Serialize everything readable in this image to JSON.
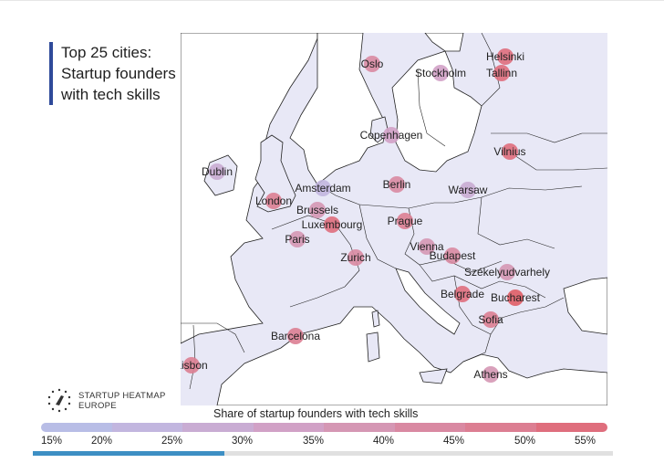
{
  "title": [
    "Top 25 cities:",
    "Startup founders",
    "with tech skills"
  ],
  "brand": {
    "name_line1": "STARTUP HEATMAP",
    "name_line2": "EUROPE",
    "logo_icon": "rocket-stars-icon"
  },
  "legend": {
    "title": "Share of startup founders with tech skills",
    "ticks": [
      "15%",
      "20%",
      "25%",
      "30%",
      "35%",
      "40%",
      "45%",
      "50%",
      "55%"
    ],
    "colors": [
      "#b8bde6",
      "#c2b6df",
      "#c9acd3",
      "#d1a1c6",
      "#d597b4",
      "#d989a2",
      "#dc7e92",
      "#df6e7d",
      "#e05d66"
    ]
  },
  "colors": {
    "map_land": "#e8e8f6",
    "map_water": "#ffffff",
    "border": "#111111",
    "title_accent": "#2f4a9a",
    "progress": "#3d8fc4"
  },
  "progress": {
    "fraction": 0.33
  },
  "cities": [
    {
      "name": "Oslo",
      "share": 38
    },
    {
      "name": "Stockholm",
      "share": 31
    },
    {
      "name": "Helsinki",
      "share": 50
    },
    {
      "name": "Tallinn",
      "share": 52
    },
    {
      "name": "Copenhagen",
      "share": 29
    },
    {
      "name": "Vilnius",
      "share": 52
    },
    {
      "name": "Dublin",
      "share": 26
    },
    {
      "name": "Amsterdam",
      "share": 21
    },
    {
      "name": "Berlin",
      "share": 40
    },
    {
      "name": "Warsaw",
      "share": 24
    },
    {
      "name": "London",
      "share": 44
    },
    {
      "name": "Brussels",
      "share": 34
    },
    {
      "name": "Luxembourg",
      "share": 48
    },
    {
      "name": "Prague",
      "share": 47
    },
    {
      "name": "Paris",
      "share": 33
    },
    {
      "name": "Vienna",
      "share": 37
    },
    {
      "name": "Budapest",
      "share": 41
    },
    {
      "name": "Zurich",
      "share": 42
    },
    {
      "name": "Székelyudvarhely",
      "share": 37
    },
    {
      "name": "Belgrade",
      "share": 50
    },
    {
      "name": "Bucharest",
      "share": 54
    },
    {
      "name": "Sofia",
      "share": 44
    },
    {
      "name": "Barcelona",
      "share": 43
    },
    {
      "name": "Lisbon",
      "share": 44
    },
    {
      "name": "Athens",
      "share": 34
    }
  ]
}
